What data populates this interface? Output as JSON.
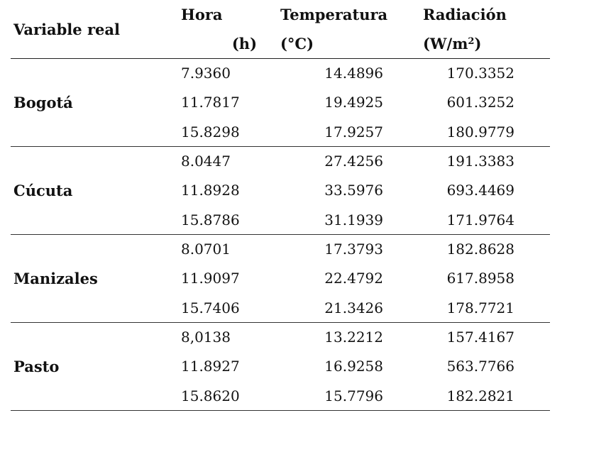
{
  "table": {
    "header": {
      "variable": "Variable real",
      "hora_title": "Hora",
      "hora_unit": "(h)",
      "temp_title": "Temperatura",
      "temp_unit": "(°C)",
      "rad_title": "Radiación",
      "rad_unit_base": "(W/m",
      "rad_unit_sup": "2",
      "rad_unit_close": ")"
    },
    "groups": [
      {
        "city": "Bogotá",
        "rows": [
          {
            "hora": "7.9360",
            "temp": "14.4896",
            "rad": "170.3352"
          },
          {
            "hora": "11.7817",
            "temp": "19.4925",
            "rad": "601.3252"
          },
          {
            "hora": "15.8298",
            "temp": "17.9257",
            "rad": "180.9779"
          }
        ]
      },
      {
        "city": "Cúcuta",
        "rows": [
          {
            "hora": "8.0447",
            "temp": "27.4256",
            "rad": "191.3383"
          },
          {
            "hora": "11.8928",
            "temp": "33.5976",
            "rad": "693.4469"
          },
          {
            "hora": "15.8786",
            "temp": "31.1939",
            "rad": "171.9764"
          }
        ]
      },
      {
        "city": "Manizales",
        "rows": [
          {
            "hora": "8.0701",
            "temp": "17.3793",
            "rad": "182.8628"
          },
          {
            "hora": "11.9097",
            "temp": "22.4792",
            "rad": "617.8958"
          },
          {
            "hora": "15.7406",
            "temp": "21.3426",
            "rad": "178.7721"
          }
        ]
      },
      {
        "city": "Pasto",
        "rows": [
          {
            "hora": "8,0138",
            "temp": "13.2212",
            "rad": "157.4167"
          },
          {
            "hora": "11.8927",
            "temp": "16.9258",
            "rad": "563.7766"
          },
          {
            "hora": "15.8620",
            "temp": "15.7796",
            "rad": "182.2821"
          }
        ]
      }
    ]
  }
}
